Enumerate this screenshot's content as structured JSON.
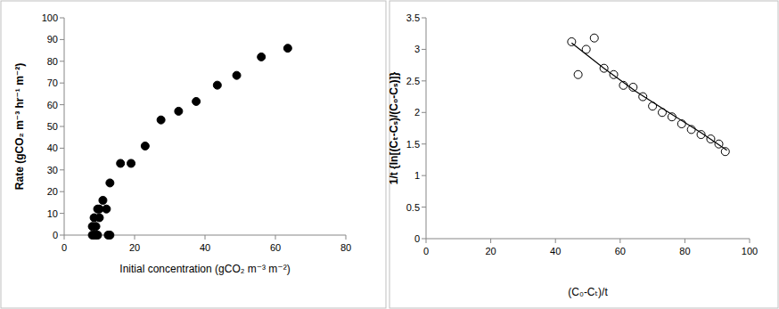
{
  "chart_data": [
    {
      "type": "scatter",
      "x_label": "Initial concentration (gCO₂ m⁻³ m⁻²)",
      "y_label": "Rate (gCO₂ m⁻³ hr⁻¹ m⁻²)",
      "x": [
        8,
        8.5,
        9,
        9.5,
        8,
        9,
        8.5,
        10,
        9.5,
        10,
        11,
        12,
        12.5,
        13,
        13,
        16,
        19,
        23,
        27.5,
        32.5,
        37.5,
        43.5,
        49,
        56,
        63.5
      ],
      "values": [
        0,
        0,
        0,
        0,
        4,
        4,
        8,
        8,
        12,
        12,
        16,
        12,
        0,
        0,
        24,
        33,
        33,
        41,
        53,
        57,
        61.5,
        69,
        73.5,
        82,
        86
      ],
      "color": "#000000",
      "marker": "circle",
      "xlim": [
        0,
        80
      ],
      "xticks": [
        0,
        20,
        40,
        60,
        80
      ],
      "ylim": [
        0,
        100
      ],
      "yticks": [
        0,
        10,
        20,
        30,
        40,
        50,
        60,
        70,
        80,
        90,
        100
      ],
      "grid": false
    },
    {
      "type": "scatter",
      "x_label": "(C₀-Cₜ)/t",
      "y_label": "1/t {ln[(Cₜ-Cₛ)/(C₀-Cₛ)]}",
      "series": [
        {
          "type": "scatter",
          "marker": "circle-open",
          "color": "#000000",
          "x": [
            45,
            47,
            49.5,
            52,
            55,
            58,
            61,
            64,
            67,
            70,
            73,
            76,
            79,
            82,
            85,
            88,
            90.5,
            92.5
          ],
          "values": [
            3.12,
            2.6,
            3.0,
            3.18,
            2.7,
            2.6,
            2.43,
            2.4,
            2.25,
            2.1,
            2.0,
            1.93,
            1.82,
            1.73,
            1.65,
            1.58,
            1.5,
            1.38
          ]
        },
        {
          "type": "line",
          "line_style": "solid",
          "color": "#000000",
          "x": [
            45,
            55,
            65,
            75,
            85,
            93
          ],
          "values": [
            3.1,
            2.7,
            2.33,
            2.0,
            1.68,
            1.4
          ]
        }
      ],
      "xlim": [
        0,
        100
      ],
      "xticks": [
        0,
        20,
        40,
        60,
        80,
        100
      ],
      "ylim": [
        0,
        3.5
      ],
      "yticks": [
        0,
        0.5,
        1,
        1.5,
        2,
        2.5,
        3,
        3.5
      ],
      "grid": false
    }
  ]
}
